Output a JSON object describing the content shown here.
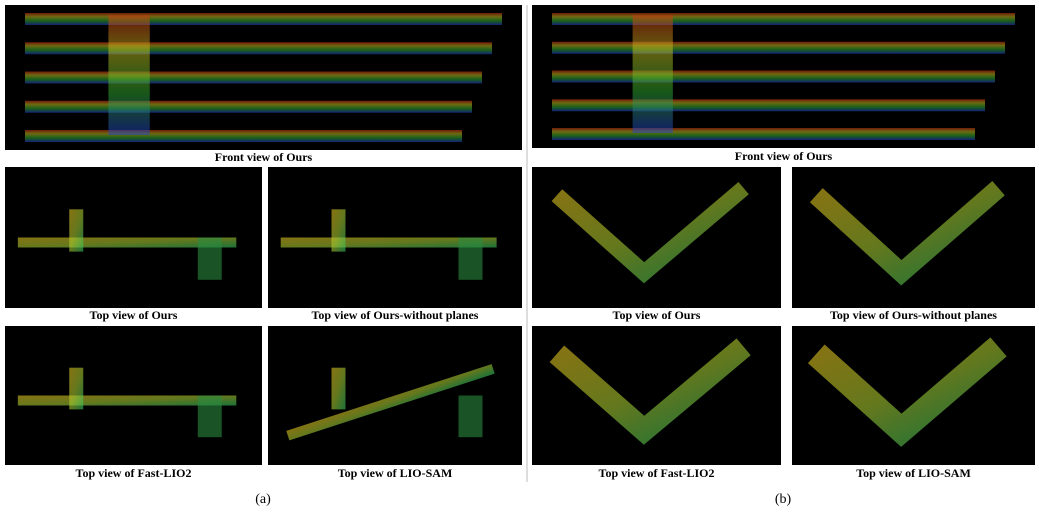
{
  "figure": {
    "sections": [
      {
        "label": "(a)",
        "front_caption": "Front view of Ours",
        "top_captions": [
          "Top view of Ours",
          "Top view of Ours-without planes",
          "Top view of Fast-LIO2",
          "Top view of LIO-SAM"
        ]
      },
      {
        "label": "(b)",
        "front_caption": "Front view of Ours",
        "top_captions": [
          "Top view of Ours",
          "Top view of Ours-without planes",
          "Top view of Fast-LIO2",
          "Top view of LIO-SAM"
        ]
      }
    ]
  }
}
